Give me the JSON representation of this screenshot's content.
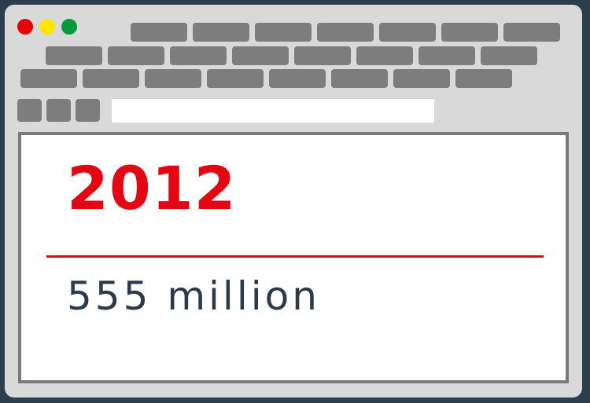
{
  "window": {
    "controls": [
      {
        "name": "close",
        "color": "#e60000"
      },
      {
        "name": "minimize",
        "color": "#ffe600"
      },
      {
        "name": "maximize",
        "color": "#009a3d"
      }
    ],
    "tab_color": "#7d7d7d"
  },
  "address_bar": {
    "value": "",
    "placeholder": ""
  },
  "content": {
    "year": "2012",
    "stat": "555 million"
  },
  "colors": {
    "accent": "#e30613",
    "text": "#2b3a4a",
    "background": "#2c3d4d",
    "frame": "#d9d9d9"
  }
}
